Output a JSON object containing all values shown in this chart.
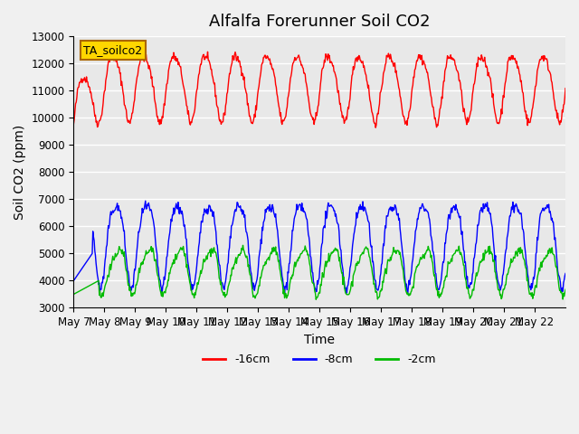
{
  "title": "Alfalfa Forerunner Soil CO2",
  "xlabel": "Time",
  "ylabel": "Soil CO2 (ppm)",
  "ylim": [
    3000,
    13000
  ],
  "yticks": [
    3000,
    4000,
    5000,
    6000,
    7000,
    8000,
    9000,
    10000,
    11000,
    12000,
    13000
  ],
  "xtick_labels": [
    "May 7",
    "May 8",
    "May 9",
    "May 10",
    "May 11",
    "May 12",
    "May 13",
    "May 14",
    "May 15",
    "May 16",
    "May 17",
    "May 18",
    "May 19",
    "May 20",
    "May 21",
    "May 22"
  ],
  "legend_label": "TA_soilco2",
  "legend_box_facecolor": "#FFD700",
  "legend_box_edgecolor": "#AA6600",
  "series_labels": [
    "-16cm",
    "-8cm",
    "-2cm"
  ],
  "series_colors": [
    "#FF0000",
    "#0000FF",
    "#00BB00"
  ],
  "bg_color": "#E8E8E8",
  "grid_color": "#FFFFFF",
  "fig_bg_color": "#F0F0F0",
  "title_fontsize": 13,
  "axis_label_fontsize": 10,
  "tick_fontsize": 8.5
}
